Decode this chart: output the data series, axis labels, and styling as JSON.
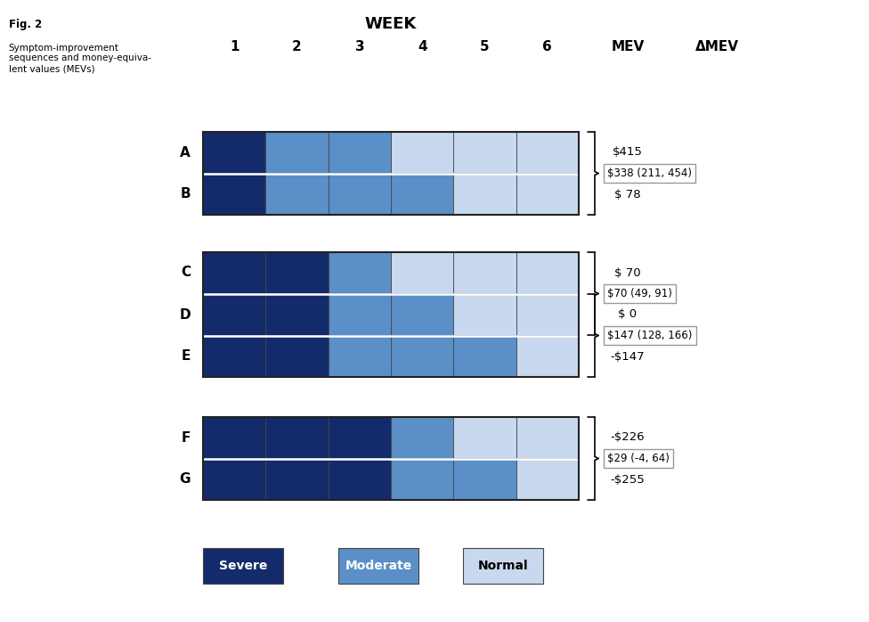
{
  "title_fig": "Fig. 2",
  "title_desc": "Symptom-improvement\nsequences and money-equiva-\nlent values (MEVs)",
  "week_label": "WEEK",
  "week_nums": [
    "1",
    "2",
    "3",
    "4",
    "5",
    "6"
  ],
  "mev_label": "MEV",
  "delta_mev_label": "ΔMEV",
  "colors": {
    "severe": "#142B6B",
    "moderate": "#5B8FC8",
    "normal": "#C8D8EE",
    "border": "#444444",
    "box_border": "#999999"
  },
  "rows": [
    {
      "label": "A",
      "pattern": [
        "severe",
        "moderate",
        "moderate",
        "normal",
        "normal",
        "normal"
      ],
      "mev": "$415"
    },
    {
      "label": "B",
      "pattern": [
        "severe",
        "moderate",
        "moderate",
        "moderate",
        "normal",
        "normal"
      ],
      "mev": "$ 78"
    },
    {
      "label": "C",
      "pattern": [
        "severe",
        "severe",
        "moderate",
        "normal",
        "normal",
        "normal"
      ],
      "mev": "$ 70"
    },
    {
      "label": "D",
      "pattern": [
        "severe",
        "severe",
        "moderate",
        "moderate",
        "normal",
        "normal"
      ],
      "mev": "$ 0"
    },
    {
      "label": "E",
      "pattern": [
        "severe",
        "severe",
        "moderate",
        "moderate",
        "moderate",
        "normal"
      ],
      "mev": "-$147"
    },
    {
      "label": "F",
      "pattern": [
        "severe",
        "severe",
        "severe",
        "moderate",
        "normal",
        "normal"
      ],
      "mev": "-$226"
    },
    {
      "label": "G",
      "pattern": [
        "severe",
        "severe",
        "severe",
        "moderate",
        "moderate",
        "normal"
      ],
      "mev": "-$255"
    }
  ],
  "groups": [
    {
      "rows": [
        "A",
        "B"
      ],
      "brace_text": "$338 (211, 454)"
    },
    {
      "rows": [
        "C",
        "D"
      ],
      "brace_text": "$70 (49, 91)"
    },
    {
      "rows": [
        "D",
        "E"
      ],
      "brace_text": "$147 (128, 166)"
    },
    {
      "rows": [
        "F",
        "G"
      ],
      "brace_text": "$29 (-4, 64)"
    }
  ],
  "legend": [
    {
      "label": "Severe",
      "color": "#142B6B",
      "text_color": "#FFFFFF"
    },
    {
      "label": "Moderate",
      "color": "#5B8FC8",
      "text_color": "#FFFFFF"
    },
    {
      "label": "Normal",
      "color": "#C8D8EE",
      "text_color": "#000000"
    }
  ]
}
